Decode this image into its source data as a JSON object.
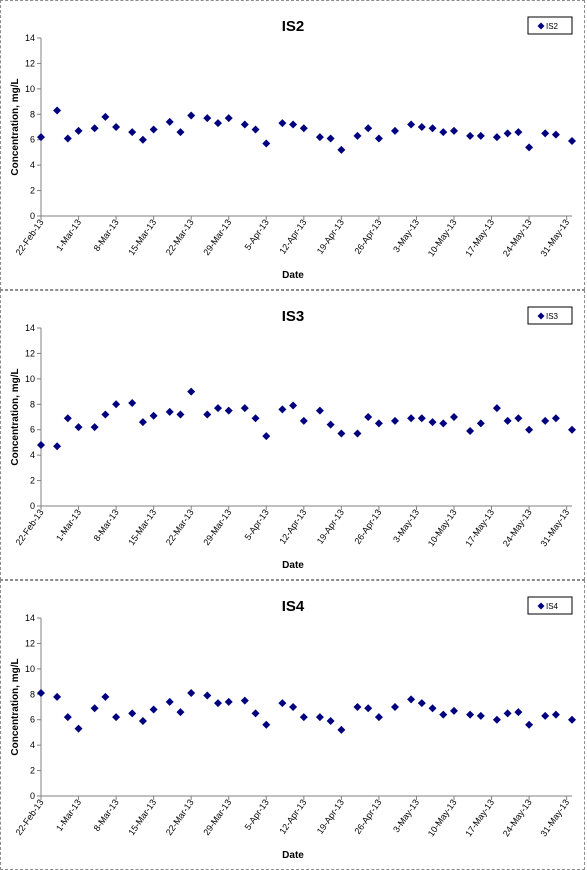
{
  "chart_data": [
    {
      "type": "scatter",
      "title": "IS2",
      "xlabel": "Date",
      "ylabel": "Concentration, mg/L",
      "ylim": [
        0,
        14
      ],
      "yticks": [
        0,
        2,
        4,
        6,
        8,
        10,
        12,
        14
      ],
      "xlim": [
        "2013-02-22",
        "2013-06-01"
      ],
      "xtick_labels": [
        "22-Feb-13",
        "1-Mar-13",
        "8-Mar-13",
        "15-Mar-13",
        "22-Mar-13",
        "29-Mar-13",
        "5-Apr-13",
        "12-Apr-13",
        "19-Apr-13",
        "26-Apr-13",
        "3-May-13",
        "10-May-13",
        "17-May-13",
        "24-May-13",
        "31-May-13"
      ],
      "grid": false,
      "legend": "top-right",
      "marker": "diamond",
      "color": "#00007f",
      "series": [
        {
          "name": "IS2",
          "x": [
            "2013-02-22",
            "2013-02-25",
            "2013-02-27",
            "2013-03-01",
            "2013-03-04",
            "2013-03-06",
            "2013-03-08",
            "2013-03-11",
            "2013-03-13",
            "2013-03-15",
            "2013-03-18",
            "2013-03-20",
            "2013-03-22",
            "2013-03-25",
            "2013-03-27",
            "2013-03-29",
            "2013-04-01",
            "2013-04-03",
            "2013-04-05",
            "2013-04-08",
            "2013-04-10",
            "2013-04-12",
            "2013-04-15",
            "2013-04-17",
            "2013-04-19",
            "2013-04-22",
            "2013-04-24",
            "2013-04-26",
            "2013-04-29",
            "2013-05-02",
            "2013-05-04",
            "2013-05-06",
            "2013-05-08",
            "2013-05-10",
            "2013-05-13",
            "2013-05-15",
            "2013-05-18",
            "2013-05-20",
            "2013-05-22",
            "2013-05-24",
            "2013-05-27",
            "2013-05-29",
            "2013-06-01"
          ],
          "values": [
            6.2,
            8.3,
            6.1,
            6.7,
            6.9,
            7.8,
            7.0,
            6.6,
            6.0,
            6.8,
            7.4,
            6.6,
            7.9,
            7.7,
            7.3,
            7.7,
            7.2,
            6.8,
            5.7,
            7.3,
            7.2,
            6.9,
            6.2,
            6.1,
            5.2,
            6.3,
            6.9,
            6.1,
            6.7,
            7.2,
            7.0,
            6.9,
            6.6,
            6.7,
            6.3,
            6.3,
            6.2,
            6.5,
            6.6,
            5.4,
            6.5,
            6.4,
            5.9
          ]
        }
      ]
    },
    {
      "type": "scatter",
      "title": "IS3",
      "xlabel": "Date",
      "ylabel": "Concentration, mg/L",
      "ylim": [
        0,
        14
      ],
      "yticks": [
        0,
        2,
        4,
        6,
        8,
        10,
        12,
        14
      ],
      "xlim": [
        "2013-02-22",
        "2013-06-01"
      ],
      "xtick_labels": [
        "22-Feb-13",
        "1-Mar-13",
        "8-Mar-13",
        "15-Mar-13",
        "22-Mar-13",
        "29-Mar-13",
        "5-Apr-13",
        "12-Apr-13",
        "19-Apr-13",
        "26-Apr-13",
        "3-May-13",
        "10-May-13",
        "17-May-13",
        "24-May-13",
        "31-May-13"
      ],
      "grid": false,
      "legend": "top-right",
      "marker": "diamond",
      "color": "#00007f",
      "series": [
        {
          "name": "IS3",
          "x": [
            "2013-02-22",
            "2013-02-25",
            "2013-02-27",
            "2013-03-01",
            "2013-03-04",
            "2013-03-06",
            "2013-03-08",
            "2013-03-11",
            "2013-03-13",
            "2013-03-15",
            "2013-03-18",
            "2013-03-20",
            "2013-03-22",
            "2013-03-25",
            "2013-03-27",
            "2013-03-29",
            "2013-04-01",
            "2013-04-03",
            "2013-04-05",
            "2013-04-08",
            "2013-04-10",
            "2013-04-12",
            "2013-04-15",
            "2013-04-17",
            "2013-04-19",
            "2013-04-22",
            "2013-04-24",
            "2013-04-26",
            "2013-04-29",
            "2013-05-02",
            "2013-05-04",
            "2013-05-06",
            "2013-05-08",
            "2013-05-10",
            "2013-05-13",
            "2013-05-15",
            "2013-05-18",
            "2013-05-20",
            "2013-05-22",
            "2013-05-24",
            "2013-05-27",
            "2013-05-29",
            "2013-06-01"
          ],
          "values": [
            4.8,
            4.7,
            6.9,
            6.2,
            6.2,
            7.2,
            8.0,
            8.1,
            6.6,
            7.1,
            7.4,
            7.2,
            9.0,
            7.2,
            7.7,
            7.5,
            7.7,
            6.9,
            5.5,
            7.6,
            7.9,
            6.7,
            7.5,
            6.4,
            5.7,
            5.7,
            7.0,
            6.5,
            6.7,
            6.9,
            6.9,
            6.6,
            6.5,
            7.0,
            5.9,
            6.5,
            7.7,
            6.7,
            6.9,
            6.0,
            6.7,
            6.9,
            6.0
          ]
        }
      ]
    },
    {
      "type": "scatter",
      "title": "IS4",
      "xlabel": "Date",
      "ylabel": "Concentration, mg/L",
      "ylim": [
        0,
        14
      ],
      "yticks": [
        0,
        2,
        4,
        6,
        8,
        10,
        12,
        14
      ],
      "xlim": [
        "2013-02-22",
        "2013-06-01"
      ],
      "xtick_labels": [
        "22-Feb-13",
        "1-Mar-13",
        "8-Mar-13",
        "15-Mar-13",
        "22-Mar-13",
        "29-Mar-13",
        "5-Apr-13",
        "12-Apr-13",
        "19-Apr-13",
        "26-Apr-13",
        "3-May-13",
        "10-May-13",
        "17-May-13",
        "24-May-13",
        "31-May-13"
      ],
      "grid": false,
      "legend": "top-right",
      "marker": "diamond",
      "color": "#00007f",
      "series": [
        {
          "name": "IS4",
          "x": [
            "2013-02-22",
            "2013-02-25",
            "2013-02-27",
            "2013-03-01",
            "2013-03-04",
            "2013-03-06",
            "2013-03-08",
            "2013-03-11",
            "2013-03-13",
            "2013-03-15",
            "2013-03-18",
            "2013-03-20",
            "2013-03-22",
            "2013-03-25",
            "2013-03-27",
            "2013-03-29",
            "2013-04-01",
            "2013-04-03",
            "2013-04-05",
            "2013-04-08",
            "2013-04-10",
            "2013-04-12",
            "2013-04-15",
            "2013-04-17",
            "2013-04-19",
            "2013-04-22",
            "2013-04-24",
            "2013-04-26",
            "2013-04-29",
            "2013-05-02",
            "2013-05-04",
            "2013-05-06",
            "2013-05-08",
            "2013-05-10",
            "2013-05-13",
            "2013-05-15",
            "2013-05-18",
            "2013-05-20",
            "2013-05-22",
            "2013-05-24",
            "2013-05-27",
            "2013-05-29",
            "2013-06-01"
          ],
          "values": [
            8.1,
            7.8,
            6.2,
            5.3,
            6.9,
            7.8,
            6.2,
            6.5,
            5.9,
            6.8,
            7.4,
            6.6,
            8.1,
            7.9,
            7.3,
            7.4,
            7.5,
            6.5,
            5.6,
            7.3,
            7.0,
            6.2,
            6.2,
            5.9,
            5.2,
            7.0,
            6.9,
            6.2,
            7.0,
            7.6,
            7.3,
            6.9,
            6.4,
            6.7,
            6.4,
            6.3,
            6.0,
            6.5,
            6.6,
            5.6,
            6.3,
            6.4,
            6.0
          ]
        }
      ]
    }
  ]
}
